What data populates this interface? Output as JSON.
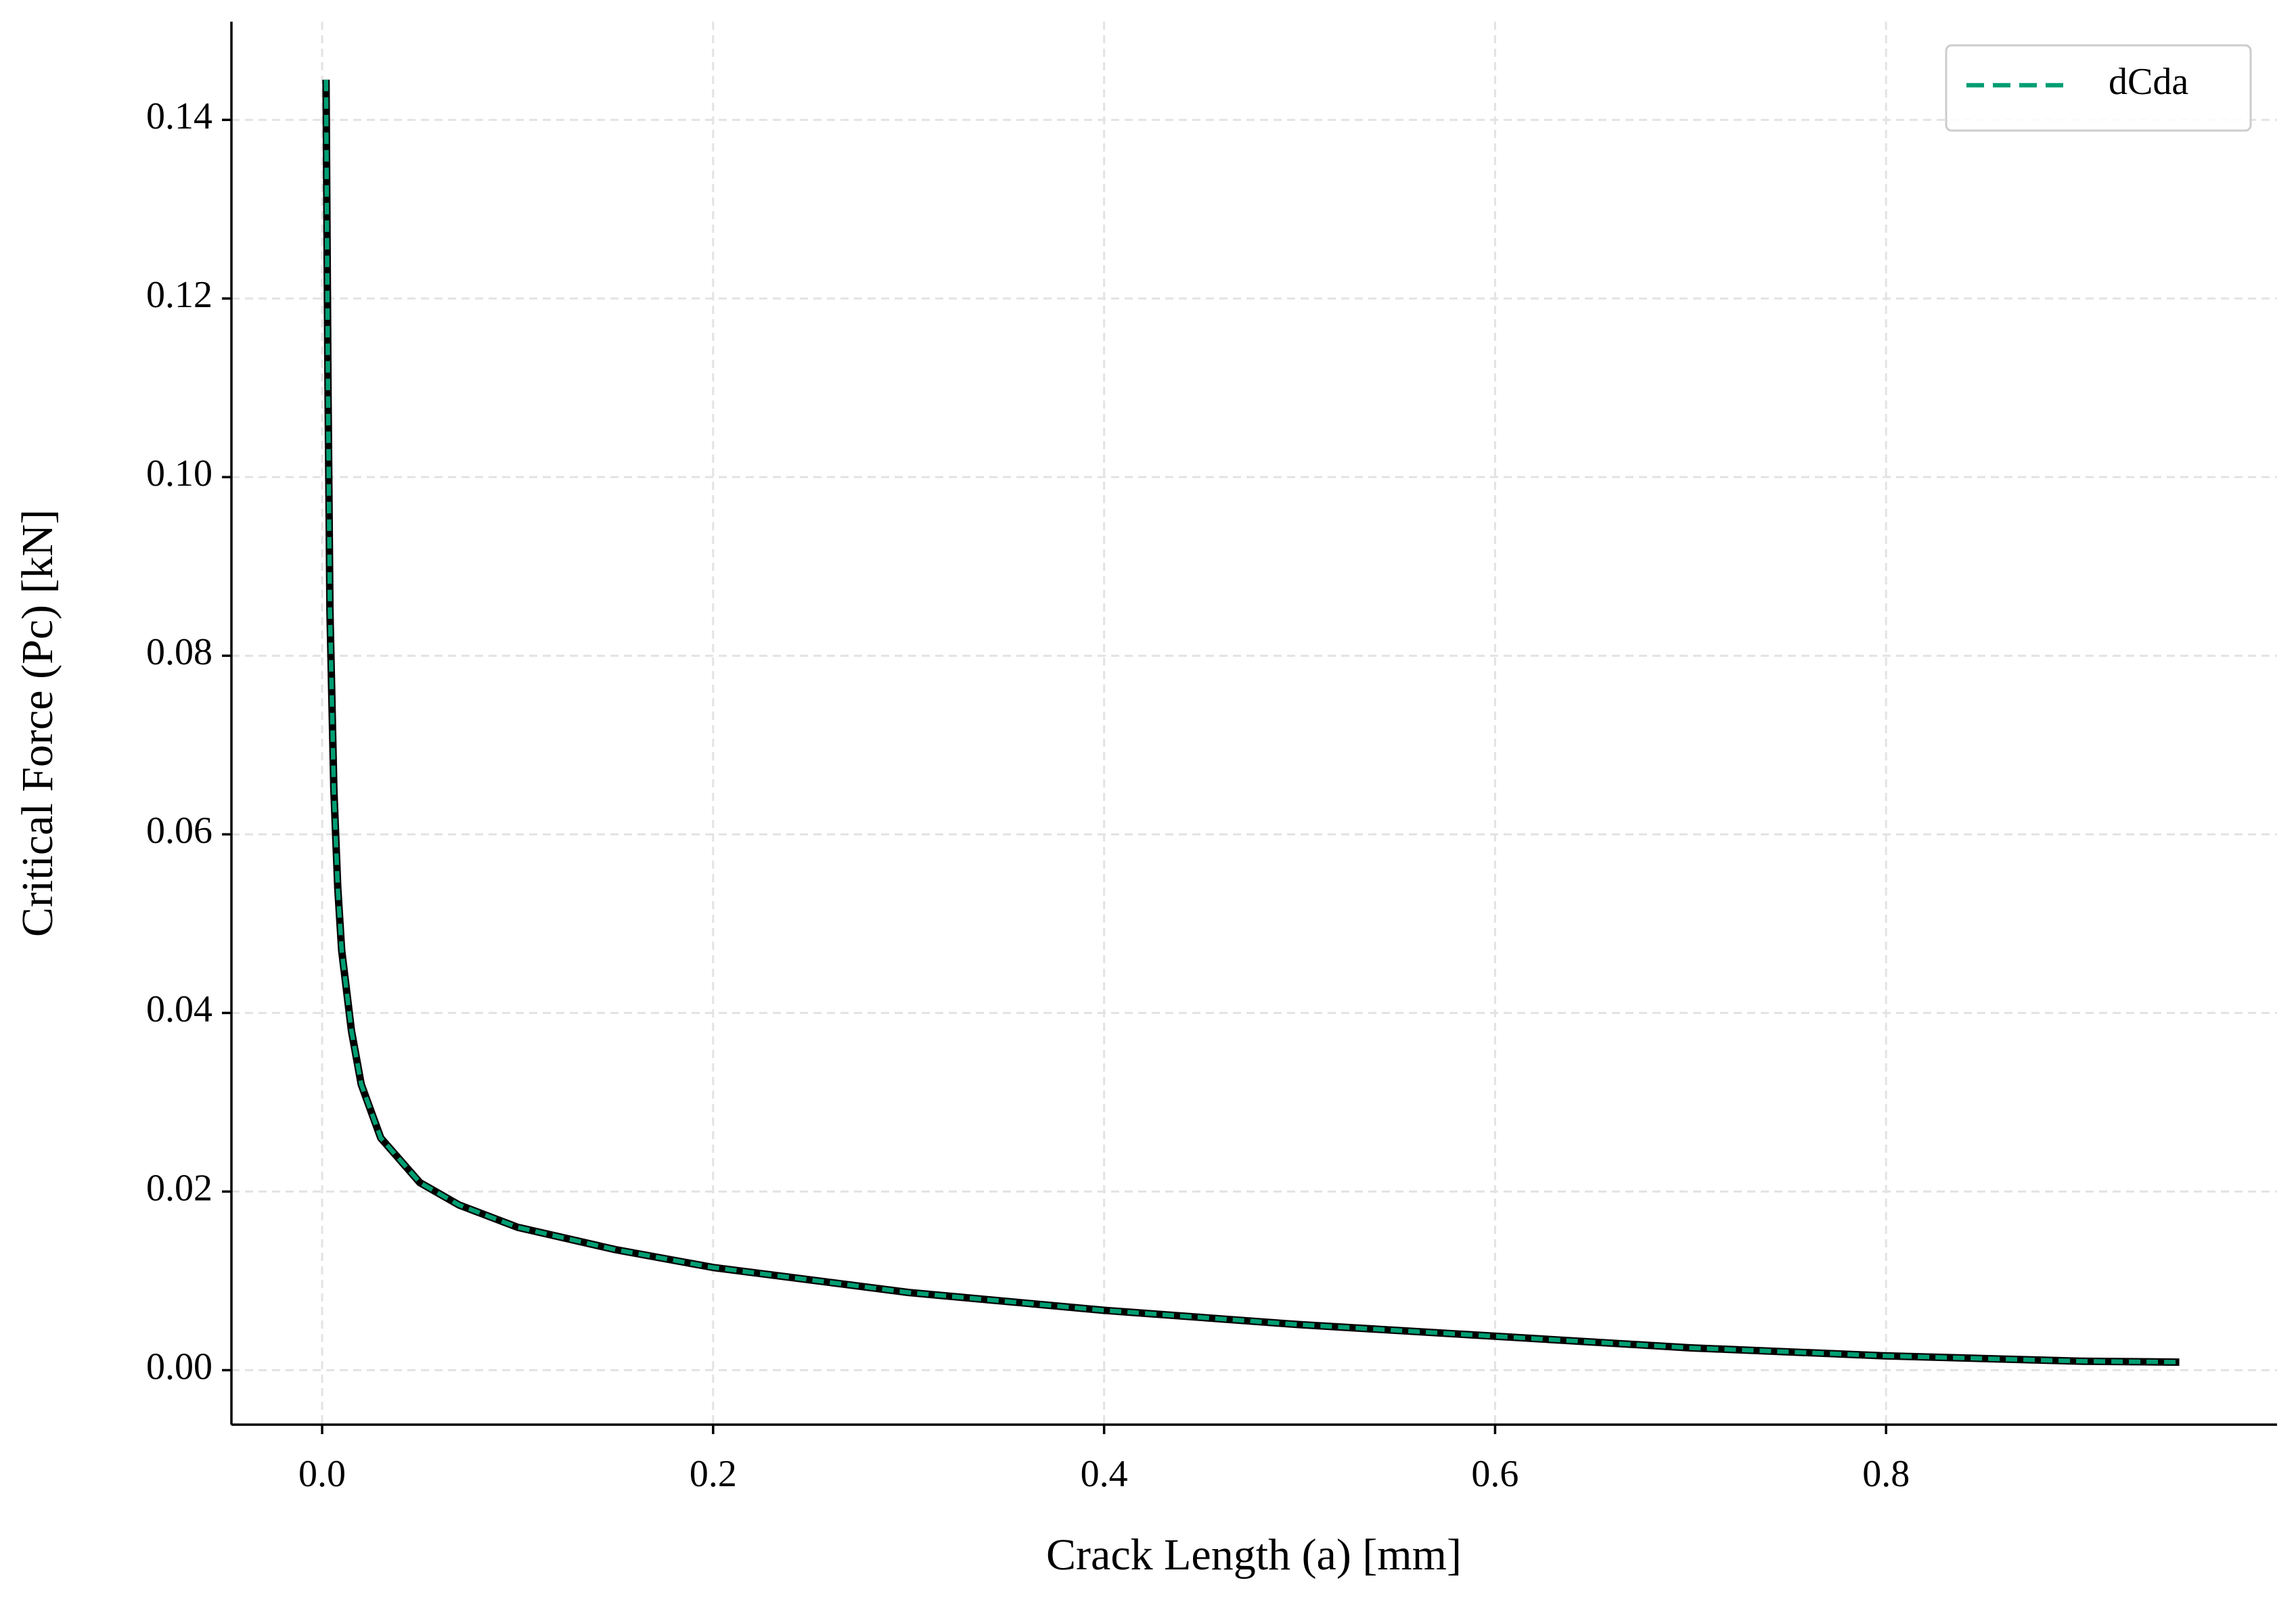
{
  "chart_data": {
    "type": "line",
    "xlabel": "Crack Length (a) [mm]",
    "ylabel": "Critical Force (Pc) [kN]",
    "x": [
      0.002,
      0.003,
      0.004,
      0.006,
      0.008,
      0.01,
      0.015,
      0.02,
      0.03,
      0.04,
      0.05,
      0.07,
      0.1,
      0.15,
      0.2,
      0.3,
      0.4,
      0.5,
      0.6,
      0.7,
      0.8,
      0.9,
      0.95
    ],
    "series": [
      {
        "name": "dCda",
        "color": "#009e73",
        "edgecolor": "#000000",
        "dashed": true,
        "values": [
          0.1445,
          0.11,
          0.085,
          0.065,
          0.054,
          0.047,
          0.038,
          0.032,
          0.026,
          0.0235,
          0.021,
          0.0185,
          0.016,
          0.0135,
          0.0115,
          0.0087,
          0.0067,
          0.0051,
          0.0038,
          0.0025,
          0.0016,
          0.001,
          0.0009
        ]
      }
    ],
    "xlim": [
      -0.0464,
      1.0
    ],
    "ylim": [
      -0.0061,
      0.151
    ],
    "xticks": [
      {
        "value": 0,
        "label": "0.0"
      },
      0.2,
      0.4,
      0.6,
      0.8
    ],
    "yticks": [
      {
        "value": 0,
        "label": "0.00"
      },
      {
        "value": 0.02,
        "label": "0.02"
      },
      {
        "value": 0.04,
        "label": "0.04"
      },
      {
        "value": 0.06,
        "label": "0.06"
      },
      {
        "value": 0.08,
        "label": "0.08"
      },
      {
        "value": 0.1,
        "label": "0.10"
      },
      {
        "value": 0.12,
        "label": "0.12"
      },
      {
        "value": 0.14,
        "label": "0.14"
      }
    ],
    "grid": true,
    "legend": "upper right"
  }
}
